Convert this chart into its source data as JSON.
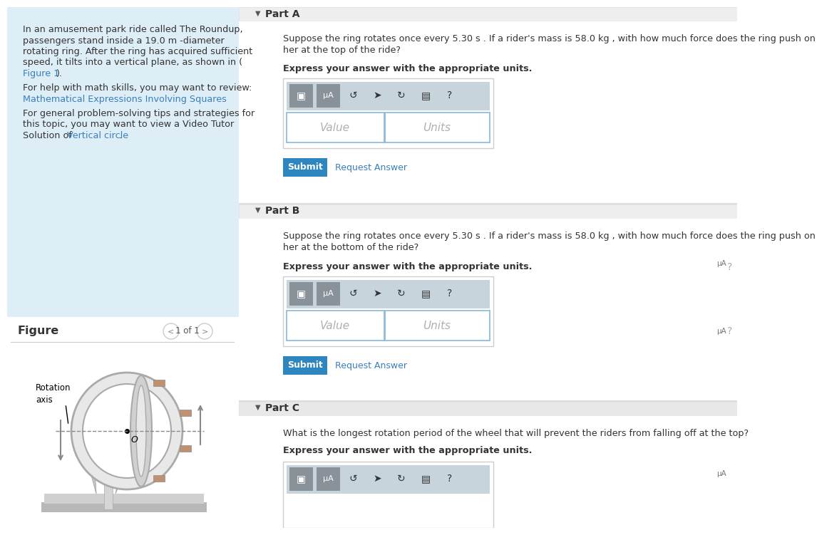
{
  "white": "#ffffff",
  "text_dark": "#333333",
  "text_blue": "#3a7ebf",
  "submit_blue": "#2e86c1",
  "left_panel_bg": "#deeef6",
  "section_header_bg": "#eeeeee",
  "part_c_header_bg": "#e8e8e8",
  "toolbar_bg": "#c8d4dc",
  "toolbar_btn_bg": "#8a9299",
  "input_border": "#88b8d8",
  "divider": "#dddddd",
  "info_lines": [
    "In an amusement park ride called The Roundup,",
    "passengers stand inside a 19.0 m -diameter",
    "rotating ring. After the ring has acquired sufficient",
    "speed, it tilts into a vertical plane, as shown in ("
  ],
  "figure1_link": "Figure 1",
  "figure1_suffix": ").",
  "help_math_prefix": "For help with math skills, you may want to review:",
  "help_math_link": "Mathematical Expressions Involving Squares",
  "help_vid_prefix1": "For general problem-solving tips and strategies for",
  "help_vid_prefix2": "this topic, you may want to view a Video Tutor",
  "help_vid_prefix3": "Solution of ",
  "help_vid_link": "Vertical circle",
  "help_vid_suffix": ".",
  "figure_label": "Figure",
  "nav_text": "1 of 1",
  "rotation_axis_label": "Rotation\naxis",
  "center_label": "O",
  "part_a_label": "Part A",
  "part_b_label": "Part B",
  "part_c_label": "Part C",
  "part_a_q1": "Suppose the ring rotates once every 5.30 s . If a rider's mass is 58.0 kg , with how much force does the ring push on",
  "part_a_q2": "her at the top of the ride?",
  "part_b_q1": "Suppose the ring rotates once every 5.30 s . If a rider's mass is 58.0 kg , with how much force does the ring push on",
  "part_b_q2": "her at the bottom of the ride?",
  "part_c_q1": "What is the longest rotation period of the wheel that will prevent the riders from falling off at the top?",
  "express_answer": "Express your answer with the appropriate units.",
  "value_placeholder": "Value",
  "units_placeholder": "Units",
  "submit_label": "Submit",
  "request_answer": "Request Answer"
}
